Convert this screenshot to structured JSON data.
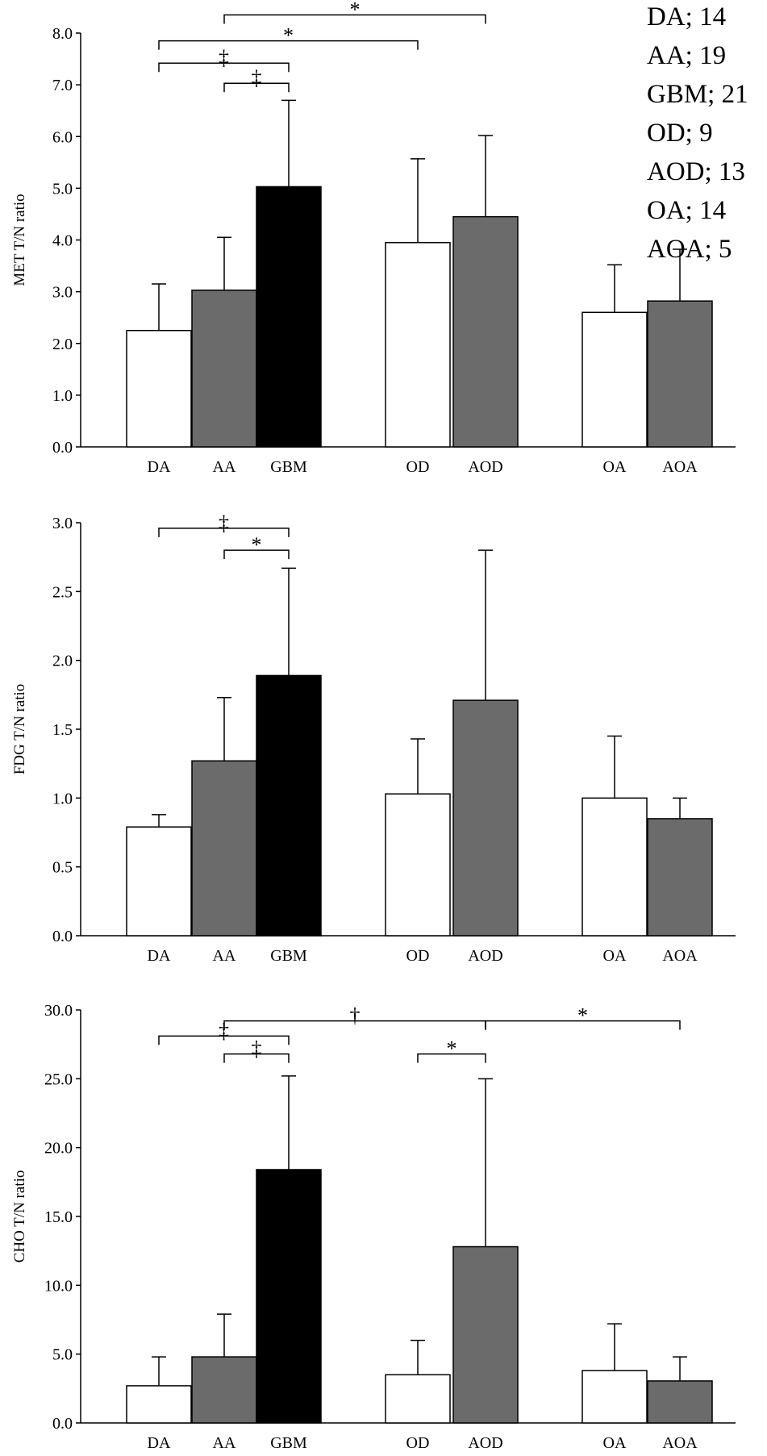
{
  "colors": {
    "DA": "#ffffff",
    "AA": "#6b6b6b",
    "GBM": "#000000",
    "OD": "#ffffff",
    "AOD": "#6b6b6b",
    "OA": "#ffffff",
    "AOA": "#6b6b6b",
    "stroke": "#000000"
  },
  "legend": [
    "DA; 14",
    "AA; 19",
    "GBM; 21",
    "OD; 9",
    "AOD; 13",
    "OA; 14",
    "AOA; 5"
  ],
  "chart_data": [
    {
      "type": "bar",
      "ylabel": "MET T/N ratio",
      "categories": [
        "DA",
        "AA",
        "GBM",
        "OD",
        "AOD",
        "OA",
        "AOA"
      ],
      "values": [
        2.25,
        3.03,
        5.03,
        3.95,
        4.45,
        2.6,
        2.82
      ],
      "error_upper": [
        3.15,
        4.05,
        6.7,
        5.57,
        6.02,
        3.52,
        3.82
      ],
      "ylim": [
        0,
        8
      ],
      "yticks": [
        "0.0",
        "1.0",
        "2.0",
        "3.0",
        "4.0",
        "5.0",
        "6.0",
        "7.0",
        "8.0"
      ],
      "significance": [
        {
          "from": "AA",
          "to": "AOD",
          "label": "*",
          "y": 8.35
        },
        {
          "from": "DA",
          "to": "OD",
          "label": "*",
          "y": 7.85
        },
        {
          "from": "DA",
          "to": "GBM",
          "label": "‡",
          "y": 7.42
        },
        {
          "from": "AA",
          "to": "GBM",
          "label": "‡",
          "y": 7.03
        }
      ]
    },
    {
      "type": "bar",
      "ylabel": "FDG T/N ratio",
      "categories": [
        "DA",
        "AA",
        "GBM",
        "OD",
        "AOD",
        "OA",
        "AOA"
      ],
      "values": [
        0.79,
        1.27,
        1.89,
        1.03,
        1.71,
        1.0,
        0.85
      ],
      "error_upper": [
        0.88,
        1.73,
        2.67,
        1.43,
        2.8,
        1.45,
        1.0
      ],
      "ylim": [
        0,
        3
      ],
      "yticks": [
        "0.0",
        "0.5",
        "1.0",
        "1.5",
        "2.0",
        "2.5",
        "3.0"
      ],
      "significance": [
        {
          "from": "DA",
          "to": "GBM",
          "label": "‡",
          "y": 2.96
        },
        {
          "from": "AA",
          "to": "GBM",
          "label": "*",
          "y": 2.8
        }
      ]
    },
    {
      "type": "bar",
      "ylabel": "CHO T/N ratio",
      "categories": [
        "DA",
        "AA",
        "GBM",
        "OD",
        "AOD",
        "OA",
        "AOA"
      ],
      "values": [
        2.7,
        4.8,
        18.4,
        3.5,
        12.8,
        3.8,
        3.05
      ],
      "error_upper": [
        4.8,
        7.9,
        25.2,
        6.0,
        25.0,
        7.2,
        4.8
      ],
      "ylim": [
        0,
        30
      ],
      "yticks": [
        "0.0",
        "5.0",
        "10.0",
        "15.0",
        "20.0",
        "25.0",
        "30.0"
      ],
      "significance": [
        {
          "from": "AA",
          "to": "AOD",
          "label": "†",
          "y": 29.2
        },
        {
          "from": "AOD",
          "to": "AOA",
          "label": "*",
          "y": 29.2
        },
        {
          "from": "DA",
          "to": "GBM",
          "label": "‡",
          "y": 28.1
        },
        {
          "from": "AA",
          "to": "GBM",
          "label": "‡",
          "y": 26.8
        },
        {
          "from": "OD",
          "to": "AOD",
          "label": "*",
          "y": 26.8
        }
      ]
    }
  ]
}
